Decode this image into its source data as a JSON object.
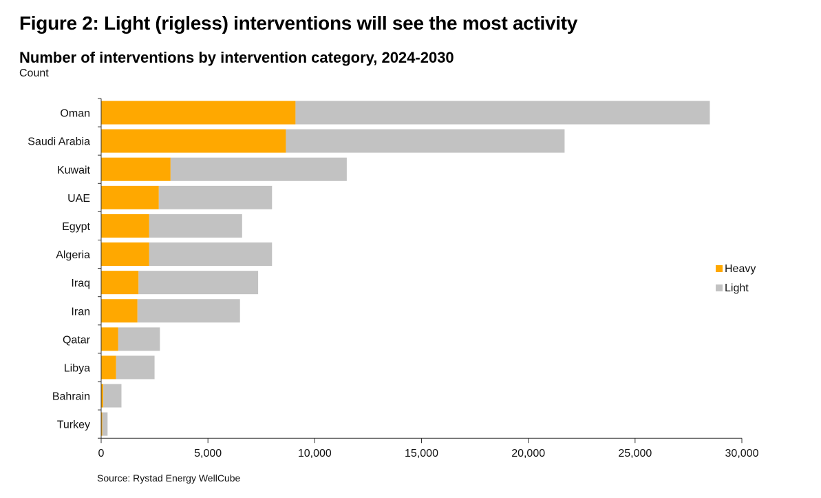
{
  "figure_title": "Figure 2: Light (rigless) interventions will see the most activity",
  "source": "Source: Rystad Energy WellCube",
  "chart_data": {
    "type": "bar",
    "orientation": "horizontal",
    "stacked": true,
    "title": "Number of interventions by intervention category, 2024-2030",
    "ylabel": "Count",
    "categories": [
      "Oman",
      "Saudi Arabia",
      "Kuwait",
      "UAE",
      "Egypt",
      "Algeria",
      "Iraq",
      "Iran",
      "Qatar",
      "Libya",
      "Bahrain",
      "Turkey"
    ],
    "series": [
      {
        "name": "Heavy",
        "color": "#FFA800",
        "values": [
          9100,
          8650,
          3250,
          2700,
          2250,
          2250,
          1750,
          1700,
          800,
          700,
          100,
          50
        ]
      },
      {
        "name": "Light",
        "color": "#C2C2C2",
        "values": [
          19400,
          13050,
          8250,
          5300,
          4350,
          5750,
          5600,
          4800,
          1950,
          1800,
          850,
          250
        ]
      }
    ],
    "xlim": [
      0,
      30000
    ],
    "xticks": [
      0,
      5000,
      10000,
      15000,
      20000,
      25000,
      30000
    ],
    "xtick_labels": [
      "0",
      "5,000",
      "10,000",
      "15,000",
      "20,000",
      "25,000",
      "30,000"
    ],
    "grid": false,
    "legend_position": "right"
  }
}
